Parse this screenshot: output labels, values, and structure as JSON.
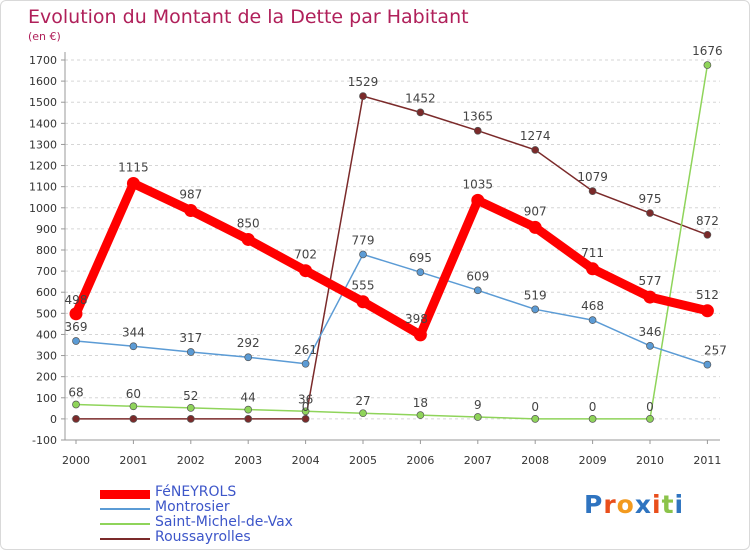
{
  "title": "Evolution du Montant de la Dette par Habitant",
  "subtitle": "(en €)",
  "logo": {
    "text": "Proxiti",
    "colors": [
      "#2f74c0",
      "#e94e1b",
      "#f39a1e",
      "#2f74c0",
      "#e94e1b",
      "#8bc34a",
      "#2f74c0"
    ]
  },
  "chart_data": {
    "type": "line",
    "title": "Evolution du Montant de la Dette par Habitant",
    "ylabel": "(en €)",
    "ylim": [
      -100,
      1700
    ],
    "yticks": [
      -100,
      0,
      100,
      200,
      300,
      400,
      500,
      600,
      700,
      800,
      900,
      1000,
      1100,
      1200,
      1300,
      1400,
      1500,
      1600,
      1700
    ],
    "x": [
      "2000",
      "2001",
      "2002",
      "2003",
      "2004",
      "2005",
      "2006",
      "2007",
      "2008",
      "2009",
      "2010",
      "2011"
    ],
    "legend_position": "bottom-left",
    "series": [
      {
        "name": "FéNEYROLS",
        "color": "#ff0000",
        "values": [
          498,
          1115,
          987,
          850,
          702,
          555,
          398,
          1035,
          907,
          711,
          577,
          512
        ],
        "labels": [
          "498",
          "1115",
          "987",
          "850",
          "702",
          "555",
          "398",
          "1035",
          "907",
          "711",
          "577",
          "512"
        ]
      },
      {
        "name": "Montrosier",
        "color": "#5b9bd5",
        "values": [
          369,
          344,
          317,
          292,
          261,
          779,
          695,
          609,
          519,
          468,
          346,
          257
        ],
        "labels": [
          "369",
          "344",
          "317",
          "292",
          "261",
          "779",
          "695",
          "609",
          "519",
          "468",
          "346",
          "257"
        ]
      },
      {
        "name": "Saint-Michel-de-Vax",
        "color": "#8fd45a",
        "values": [
          68,
          60,
          52,
          44,
          36,
          27,
          18,
          9,
          0,
          0,
          0,
          1676
        ],
        "labels": [
          "68",
          "60",
          "52",
          "44",
          "36",
          "27",
          "18",
          "9",
          "0",
          "0",
          "0",
          "1676"
        ]
      },
      {
        "name": "Roussayrolles",
        "color": "#7b2a2a",
        "values": [
          0,
          0,
          0,
          0,
          0,
          1529,
          1452,
          1365,
          1274,
          1079,
          975,
          872
        ],
        "labels": [
          "",
          "",
          "",
          "",
          "0",
          "1529",
          "1452",
          "1365",
          "1274",
          "1079",
          "975",
          "872"
        ]
      }
    ]
  }
}
